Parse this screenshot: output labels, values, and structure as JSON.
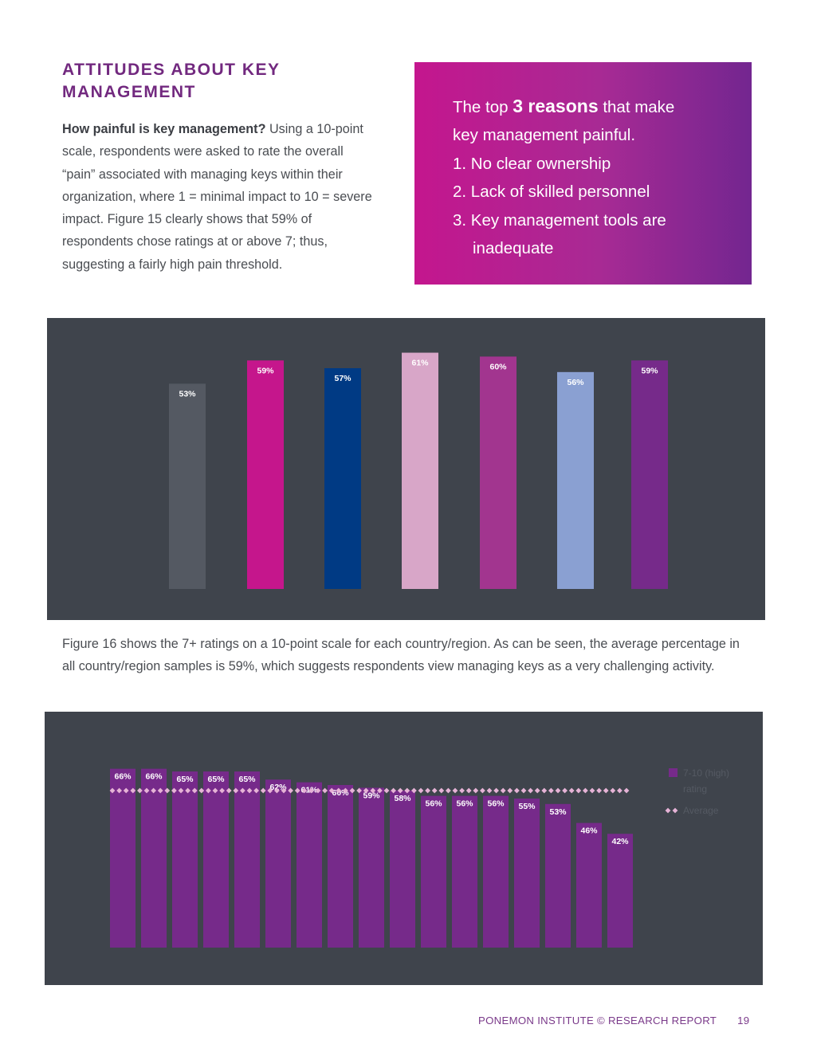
{
  "section": {
    "title_line1": "ATTITUDES ABOUT KEY",
    "title_line2": "MANAGEMENT"
  },
  "intro": {
    "lead": "How painful is key management?",
    "text": " Using a 10-point scale, respondents were asked to rate the overall “pain” associated with managing keys within their organization, where 1 = minimal impact to 10 = severe impact. Figure 15 clearly shows that 59% of respondents chose ratings at or above 7; thus, suggesting a fairly high pain threshold."
  },
  "callout": {
    "line1_pre": "The top ",
    "line1_bold": "3 reasons",
    "line1_post": " that make",
    "line2": "key management painful.",
    "item1": "1. No clear ownership",
    "item2": "2. Lack of skilled personnel",
    "item3a": "3. Key management tools are",
    "item3b": "inadequate"
  },
  "chart1": {
    "title": "",
    "chart_data": {
      "type": "bar",
      "values": [
        53,
        59,
        57,
        61,
        60,
        56,
        59
      ],
      "labels": [
        "53%",
        "59%",
        "57%",
        "61%",
        "60%",
        "56%",
        "59%"
      ],
      "colors": [
        "#545962",
        "#c5168c",
        "#003a84",
        "#d8a6c8",
        "#a2358f",
        "#8aa0d2",
        "#762a8a"
      ],
      "ylim": [
        0,
        100
      ]
    }
  },
  "body": {
    "paragraph": "Figure 16 shows the 7+ ratings on a 10-point scale for each country/region. As can be seen, the average percentage in all country/region samples is 59%, which suggests respondents view managing keys as a very challenging activity."
  },
  "chart2": {
    "title": "",
    "chart_data": {
      "type": "bar",
      "series": [
        {
          "name": "7-10 (high) rating",
          "values": [
            66,
            66,
            65,
            65,
            65,
            62,
            61,
            60,
            59,
            58,
            56,
            56,
            56,
            55,
            53,
            46,
            42
          ],
          "color": "#762a8a"
        },
        {
          "name": "Average",
          "value": 59,
          "color": "#e6b3d6"
        }
      ],
      "labels": [
        "66%",
        "66%",
        "65%",
        "65%",
        "65%",
        "62%",
        "61%",
        "60%",
        "59%",
        "58%",
        "56%",
        "56%",
        "56%",
        "55%",
        "53%",
        "46%",
        "42%"
      ],
      "ylim": [
        0,
        100
      ]
    }
  },
  "legend": {
    "item1_line1": "7-10 (high)",
    "item1_line2": "rating",
    "item2": "Average"
  },
  "footer": {
    "text": "PONEMON INSTITUTE © RESEARCH REPORT",
    "page": "19"
  }
}
